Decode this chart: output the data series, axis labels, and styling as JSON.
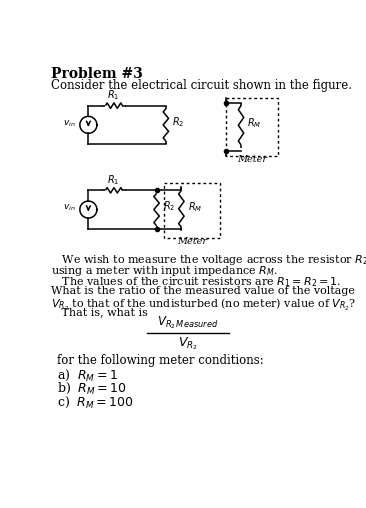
{
  "title": "Problem #3",
  "subtitle": "Consider the electrical circuit shown in the figure.",
  "body_lines": [
    "   We wish to measure the voltage across the resistor $R_2$,",
    "using a meter with input impedance $R_M$.",
    "   The values of the circuit resistors are $R_1 = R_2 = 1$.",
    "What is the ratio of the measured value of the voltage",
    "$V_{R_2}$ to that of the undisturbed (no meter) value of $V_{R_2}$?",
    "   That is, what is"
  ],
  "footer": "for the following meter conditions:",
  "items": [
    "a)  $R_M = 1$",
    "b)  $R_M = 10$",
    "c)  $R_M = 100$"
  ],
  "bg_color": "#ffffff"
}
